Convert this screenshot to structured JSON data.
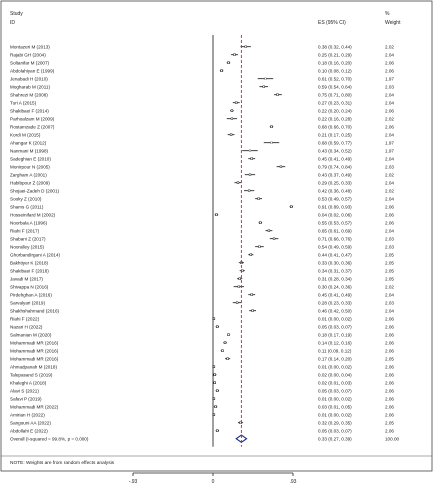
{
  "chart_data": {
    "type": "forest",
    "header": {
      "study_label_1": "Study",
      "study_label_2": "ID",
      "es_label": "ES (95% CI)",
      "weight_label_1": "%",
      "weight_label_2": "Weight"
    },
    "studies": [
      {
        "name": "Montazeri M (2013)",
        "es": 0.38,
        "lo": 0.32,
        "hi": 0.44,
        "es_text": "0.38 (0.32, 0.44)",
        "weight": "2.02"
      },
      {
        "name": "Rajabi GH (2004)",
        "es": 0.25,
        "lo": 0.21,
        "hi": 0.29,
        "es_text": "0.25 (0.21, 0.29)",
        "weight": "2.04"
      },
      {
        "name": "Soltanifar M (2007)",
        "es": 0.18,
        "lo": 0.16,
        "hi": 0.2,
        "es_text": "0.18 (0.16, 0.20)",
        "weight": "2.06"
      },
      {
        "name": "Abdolahiyan E (1999)",
        "es": 0.1,
        "lo": 0.08,
        "hi": 0.12,
        "es_text": "0.10 (0.08, 0.12)",
        "weight": "2.06"
      },
      {
        "name": "Jenabadi H (2010)",
        "es": 0.61,
        "lo": 0.52,
        "hi": 0.7,
        "es_text": "0.61 (0.52, 0.70)",
        "weight": "1.97"
      },
      {
        "name": "Mogharab M (2011)",
        "es": 0.59,
        "lo": 0.54,
        "hi": 0.64,
        "es_text": "0.59 (0.54, 0.64)",
        "weight": "2.03"
      },
      {
        "name": "Shahrezi M (2008)",
        "es": 0.75,
        "lo": 0.71,
        "hi": 0.8,
        "es_text": "0.75 (0.71, 0.80)",
        "weight": "2.04"
      },
      {
        "name": "Turi A (2015)",
        "es": 0.27,
        "lo": 0.23,
        "hi": 0.31,
        "es_text": "0.27 (0.23, 0.31)",
        "weight": "2.04"
      },
      {
        "name": "Shakibaei F (2014)",
        "es": 0.22,
        "lo": 0.2,
        "hi": 0.24,
        "es_text": "0.22 (0.20, 0.24)",
        "weight": "2.06"
      },
      {
        "name": "Parhoalzam M (2009)",
        "es": 0.22,
        "lo": 0.16,
        "hi": 0.28,
        "es_text": "0.22 (0.16, 0.28)",
        "weight": "2.02"
      },
      {
        "name": "Rostamzade Z (2007)",
        "es": 0.68,
        "lo": 0.66,
        "hi": 0.7,
        "es_text": "0.68 (0.66, 0.70)",
        "weight": "2.06"
      },
      {
        "name": "Kordi M (2015)",
        "es": 0.21,
        "lo": 0.17,
        "hi": 0.25,
        "es_text": "0.21 (0.17, 0.25)",
        "weight": "2.04"
      },
      {
        "name": "Ahangar K (2012)",
        "es": 0.68,
        "lo": 0.59,
        "hi": 0.77,
        "es_text": "0.68 (0.59, 0.77)",
        "weight": "1.97"
      },
      {
        "name": "Nanmani M (1998)",
        "es": 0.43,
        "lo": 0.34,
        "hi": 0.52,
        "es_text": "0.43 (0.34, 0.52)",
        "weight": "1.97"
      },
      {
        "name": "Sadeghian E (2010)",
        "es": 0.45,
        "lo": 0.41,
        "hi": 0.49,
        "es_text": "0.45 (0.41, 0.49)",
        "weight": "2.04"
      },
      {
        "name": "Monirpour N (2005)",
        "es": 0.79,
        "lo": 0.74,
        "hi": 0.84,
        "es_text": "0.79 (0.74, 0.84)",
        "weight": "2.03"
      },
      {
        "name": "Zargham A (2001)",
        "es": 0.43,
        "lo": 0.37,
        "hi": 0.49,
        "es_text": "0.43 (0.37, 0.49)",
        "weight": "2.02"
      },
      {
        "name": "Habibpour Z (2009)",
        "es": 0.29,
        "lo": 0.25,
        "hi": 0.33,
        "es_text": "0.29 (0.25, 0.33)",
        "weight": "2.04"
      },
      {
        "name": "Shojaei-Zadeh D (2001)",
        "es": 0.42,
        "lo": 0.36,
        "hi": 0.48,
        "es_text": "0.42 (0.36, 0.48)",
        "weight": "2.02"
      },
      {
        "name": "Sooky Z (2010)",
        "es": 0.53,
        "lo": 0.49,
        "hi": 0.57,
        "es_text": "0.53 (0.49, 0.57)",
        "weight": "2.04"
      },
      {
        "name": "Shams G (2011)",
        "es": 0.91,
        "lo": 0.89,
        "hi": 0.93,
        "es_text": "0.91 (0.89, 0.93)",
        "weight": "2.06"
      },
      {
        "name": "Hosseinifard M (2002)",
        "es": 0.04,
        "lo": 0.02,
        "hi": 0.06,
        "es_text": "0.04 (0.02, 0.06)",
        "weight": "2.06"
      },
      {
        "name": "Noorbala A (1996)",
        "es": 0.55,
        "lo": 0.53,
        "hi": 0.57,
        "es_text": "0.55 (0.53, 0.57)",
        "weight": "2.06"
      },
      {
        "name": "Riahi F (2017)",
        "es": 0.65,
        "lo": 0.61,
        "hi": 0.69,
        "es_text": "0.65 (0.61, 0.69)",
        "weight": "2.04"
      },
      {
        "name": "Shabani Z (2017)",
        "es": 0.71,
        "lo": 0.66,
        "hi": 0.76,
        "es_text": "0.71 (0.66, 0.76)",
        "weight": "2.03"
      },
      {
        "name": "Nooralley (2015)",
        "es": 0.54,
        "lo": 0.49,
        "hi": 0.59,
        "es_text": "0.54 (0.49, 0.59)",
        "weight": "2.03"
      },
      {
        "name": "Ghorbandirgani A (2014)",
        "es": 0.44,
        "lo": 0.41,
        "hi": 0.47,
        "es_text": "0.44 (0.41, 0.47)",
        "weight": "2.05"
      },
      {
        "name": "Bakhtiyer K (2018)",
        "es": 0.33,
        "lo": 0.3,
        "hi": 0.36,
        "es_text": "0.33 (0.30, 0.36)",
        "weight": "2.05"
      },
      {
        "name": "Shakibaei F (2018)",
        "es": 0.34,
        "lo": 0.31,
        "hi": 0.37,
        "es_text": "0.34 (0.31, 0.37)",
        "weight": "2.05"
      },
      {
        "name": "Javadi M (2017)",
        "es": 0.31,
        "lo": 0.28,
        "hi": 0.34,
        "es_text": "0.31 (0.28, 0.34)",
        "weight": "2.05"
      },
      {
        "name": "Shivappa N (2016)",
        "es": 0.3,
        "lo": 0.24,
        "hi": 0.36,
        "es_text": "0.30 (0.24, 0.36)",
        "weight": "2.02"
      },
      {
        "name": "Pirdehghan A (2016)",
        "es": 0.45,
        "lo": 0.41,
        "hi": 0.49,
        "es_text": "0.45 (0.41, 0.49)",
        "weight": "2.04"
      },
      {
        "name": "Sarvalyari (2019)",
        "es": 0.28,
        "lo": 0.23,
        "hi": 0.33,
        "es_text": "0.28 (0.23, 0.33)",
        "weight": "2.03"
      },
      {
        "name": "Shakhshahmand (2016)",
        "es": 0.46,
        "lo": 0.42,
        "hi": 0.5,
        "es_text": "0.46 (0.42, 0.50)",
        "weight": "2.04"
      },
      {
        "name": "Riahi F (2022)",
        "es": 0.01,
        "lo": 0.0,
        "hi": 0.02,
        "es_text": "0.01 (0.00, 0.02)",
        "weight": "2.06"
      },
      {
        "name": "Nazari H (2022)",
        "es": 0.05,
        "lo": 0.03,
        "hi": 0.07,
        "es_text": "0.05 (0.03, 0.07)",
        "weight": "2.06"
      },
      {
        "name": "Salmanian M (2020)",
        "es": 0.18,
        "lo": 0.17,
        "hi": 0.19,
        "es_text": "0.18 (0.17, 0.19)",
        "weight": "2.06"
      },
      {
        "name": "Mohammadi MR (2016)",
        "es": 0.14,
        "lo": 0.12,
        "hi": 0.16,
        "es_text": "0.14 (0.12, 0.16)",
        "weight": "2.06"
      },
      {
        "name": "Mohammadi MR (2016)",
        "es": 0.11,
        "lo": 0.09,
        "hi": 0.12,
        "es_text": "0.11 (0.09, 0.12)",
        "weight": "2.06"
      },
      {
        "name": "Mohammadi MR (2016)",
        "es": 0.17,
        "lo": 0.14,
        "hi": 0.2,
        "es_text": "0.17 (0.14, 0.20)",
        "weight": "2.05"
      },
      {
        "name": "Ahmadpanah M (2018)",
        "es": 0.01,
        "lo": 0.0,
        "hi": 0.02,
        "es_text": "0.01 (0.00, 0.02)",
        "weight": "2.06"
      },
      {
        "name": "Talepasand S (2019)",
        "es": 0.02,
        "lo": 0.0,
        "hi": 0.04,
        "es_text": "0.02 (0.00, 0.04)",
        "weight": "2.06"
      },
      {
        "name": "Khaleghi A (2018)",
        "es": 0.02,
        "lo": 0.01,
        "hi": 0.03,
        "es_text": "0.02 (0.01, 0.03)",
        "weight": "2.06"
      },
      {
        "name": "Alavi S (2021)",
        "es": 0.05,
        "lo": 0.03,
        "hi": 0.07,
        "es_text": "0.05 (0.03, 0.07)",
        "weight": "2.06"
      },
      {
        "name": "Safavi P (2019)",
        "es": 0.01,
        "lo": 0.0,
        "hi": 0.02,
        "es_text": "0.01 (0.00, 0.02)",
        "weight": "2.06"
      },
      {
        "name": "Mohammadi MR (2022)",
        "es": 0.03,
        "lo": 0.01,
        "hi": 0.05,
        "es_text": "0.03 (0.01, 0.05)",
        "weight": "2.06"
      },
      {
        "name": "Amirian H (2022)",
        "es": 0.01,
        "lo": 0.0,
        "hi": 0.02,
        "es_text": "0.01 (0.00, 0.02)",
        "weight": "2.06"
      },
      {
        "name": "Sangouni AA (2022)",
        "es": 0.32,
        "lo": 0.29,
        "hi": 0.35,
        "es_text": "0.32 (0.29, 0.35)",
        "weight": "2.05"
      },
      {
        "name": "Abdollahi E (2022)",
        "es": 0.05,
        "lo": 0.03,
        "hi": 0.07,
        "es_text": "0.05 (0.03, 0.07)",
        "weight": "2.06"
      }
    ],
    "overall": {
      "label": "Overall  (I-squared = 99.8%, p = 0.000)",
      "es": 0.33,
      "lo": 0.27,
      "hi": 0.39,
      "es_text": "0.33 (0.27, 0.39)",
      "weight": "100.00"
    },
    "note": "NOTE: Weights are from random effects analysis",
    "xaxis": {
      "range": [
        -0.93,
        0.93
      ],
      "ticks": [
        {
          "value": -0.93,
          "label": "-.93"
        },
        {
          "value": 0,
          "label": "0"
        },
        {
          "value": 0.93,
          "label": ".93"
        }
      ]
    },
    "colors": {
      "box": "#111111",
      "ci_line": "#111111",
      "overall_line": "#c0242c",
      "diamond": "#1f2a8c",
      "axis": "#222222"
    }
  }
}
